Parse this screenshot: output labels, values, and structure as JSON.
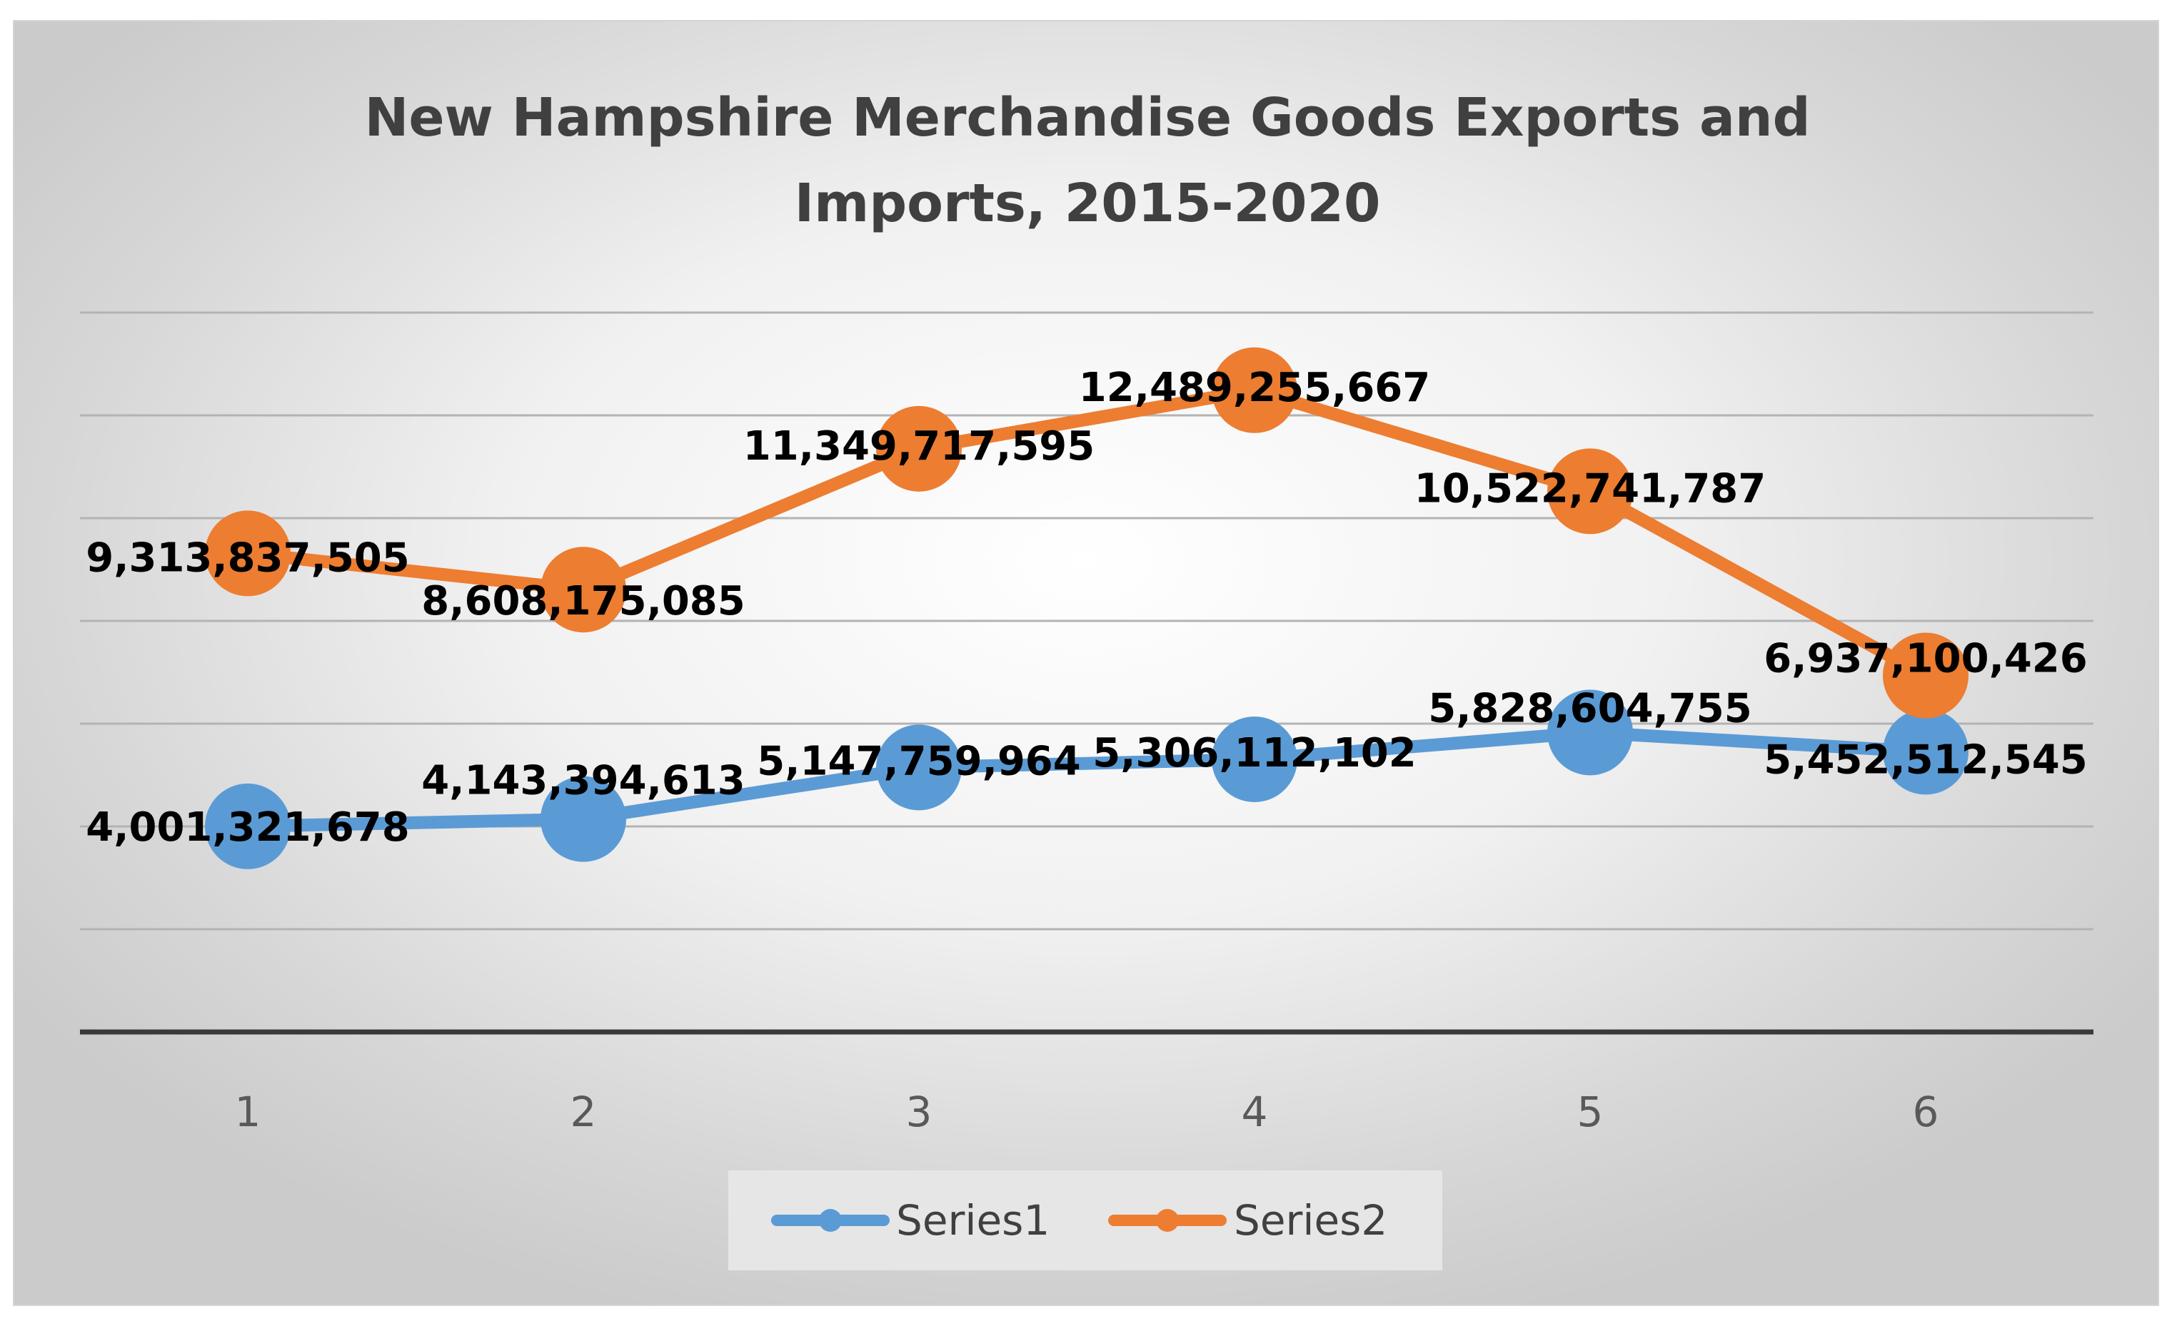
{
  "chart_data": {
    "type": "line",
    "title_lines": [
      "New Hampshire Merchandise Goods Exports and",
      "Imports, 2015-2020"
    ],
    "categories": [
      "1",
      "2",
      "3",
      "4",
      "5",
      "6"
    ],
    "ylim": [
      0,
      14000000000
    ],
    "grid": true,
    "legend_position": "bottom",
    "series": [
      {
        "name": "Series1",
        "color": "#5b9bd5",
        "values": [
          4001321678,
          4143394613,
          5147759964,
          5306112102,
          5828604755,
          5452512545
        ],
        "labels": [
          "4,001,321,678",
          "4,143,394,613",
          "5,147,759,964",
          "5,306,112,102",
          "5,828,604,755",
          "5,452,512,545"
        ]
      },
      {
        "name": "Series2",
        "color": "#ed7d31",
        "values": [
          9313837505,
          8608175085,
          11349717595,
          12489255667,
          10522741787,
          6937100426
        ],
        "labels": [
          "9,313,837,505",
          "8,608,175,085",
          "11,349,717,595",
          "12,489,255,667",
          "10,522,741,787",
          "6,937,100,426"
        ]
      }
    ]
  }
}
